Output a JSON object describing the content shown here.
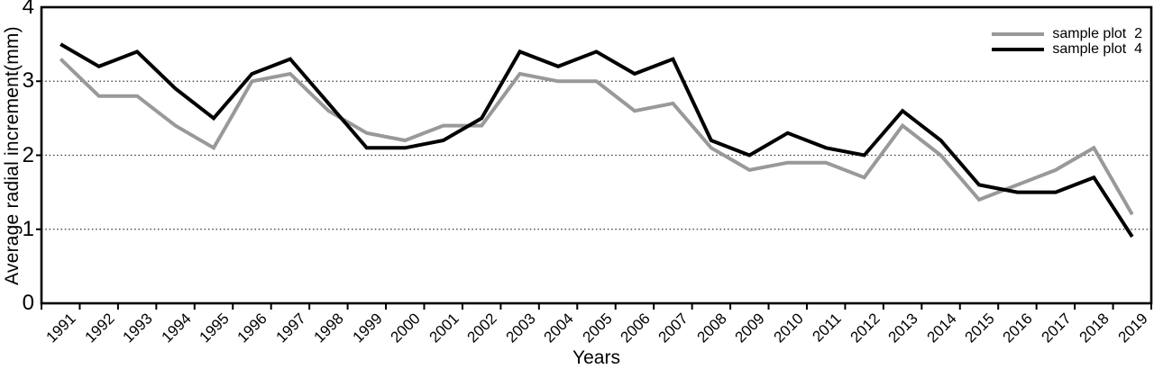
{
  "chart_data": {
    "type": "line",
    "title": "",
    "xlabel": "Years",
    "ylabel": "Average radial increment(mm)",
    "x": [
      "1991",
      "1992",
      "1993",
      "1994",
      "1995",
      "1996",
      "1997",
      "1998",
      "1999",
      "2000",
      "2001",
      "2002",
      "2003",
      "2004",
      "2005",
      "2006",
      "2007",
      "2008",
      "2009",
      "2010",
      "2011",
      "2012",
      "2013",
      "2014",
      "2015",
      "2016",
      "2017",
      "2018",
      "2019"
    ],
    "series": [
      {
        "name": "sample plot  2",
        "color": "#999999",
        "values": [
          3.3,
          2.8,
          2.8,
          2.4,
          2.1,
          3.0,
          3.1,
          2.6,
          2.3,
          2.2,
          2.4,
          2.4,
          3.1,
          3.0,
          3.0,
          2.6,
          2.7,
          2.1,
          1.8,
          1.9,
          1.9,
          1.7,
          2.4,
          2.0,
          1.4,
          1.6,
          1.8,
          2.1,
          1.2
        ]
      },
      {
        "name": "sample plot  4",
        "color": "#000000",
        "values": [
          3.5,
          3.2,
          3.4,
          2.9,
          2.5,
          3.1,
          3.3,
          2.7,
          2.1,
          2.1,
          2.2,
          2.5,
          3.4,
          3.2,
          3.4,
          3.1,
          3.3,
          2.2,
          2.0,
          2.3,
          2.1,
          2.0,
          2.6,
          2.2,
          1.6,
          1.5,
          1.5,
          1.7,
          0.9
        ]
      }
    ],
    "ylim": [
      0,
      4
    ],
    "yticks": [
      "0",
      "1",
      "2",
      "3",
      "4"
    ],
    "gridlines": [
      1,
      2,
      3
    ],
    "grid_style": "dotted",
    "legend_position": "top-right",
    "axis_color": "#000000",
    "background": "#ffffff"
  }
}
